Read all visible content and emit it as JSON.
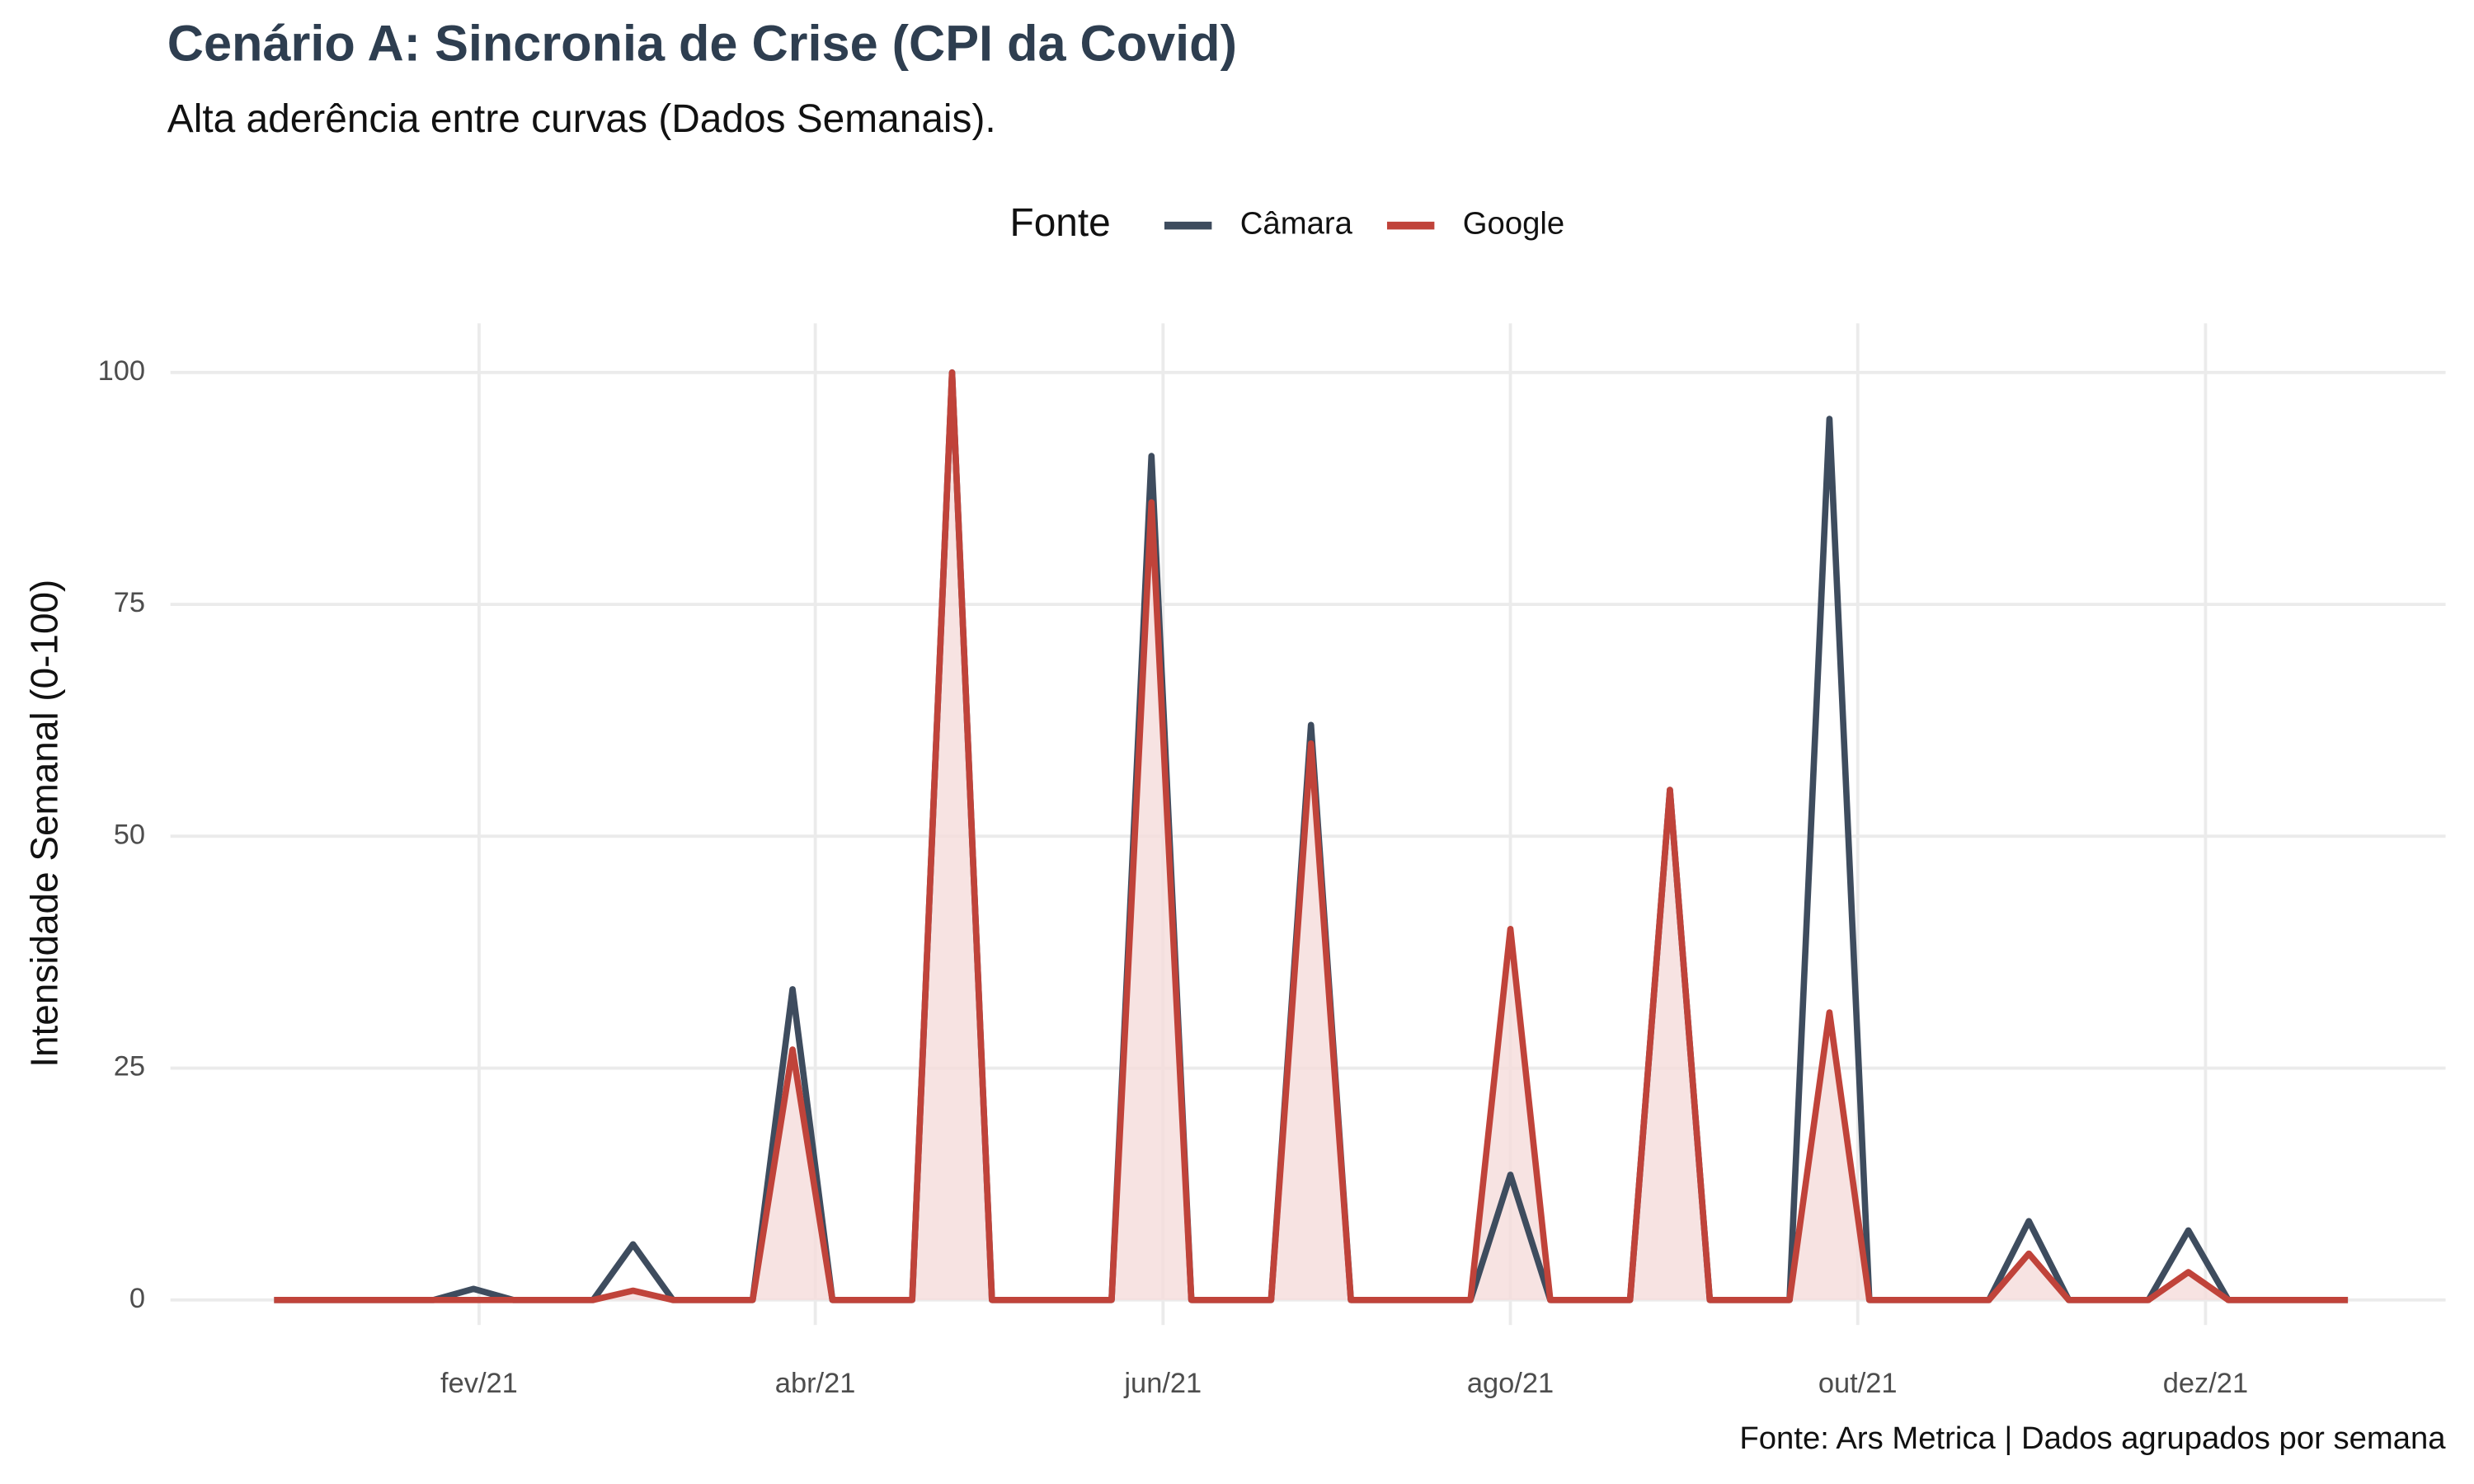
{
  "chart_data": {
    "type": "line",
    "title": "Cenário A: Sincronia de Crise (CPI da Covid)",
    "subtitle": "Alta aderência entre curvas (Dados Semanais).",
    "y_label": "Intensidade Semanal (0-100)",
    "caption": "Fonte: Ars Metrica | Dados agrupados por semana",
    "legend_title": "Fonte",
    "legend": "top",
    "grid": true,
    "categories": [
      null,
      null,
      null,
      null,
      null,
      null,
      null,
      null,
      null,
      null,
      null,
      null,
      null,
      null,
      null,
      null,
      null,
      null,
      null,
      null,
      null,
      null,
      null,
      null,
      null,
      null,
      null,
      null,
      null,
      null,
      null,
      null,
      null,
      null,
      null,
      null,
      null,
      null,
      null,
      null,
      null,
      null,
      null,
      null,
      null,
      null,
      null,
      null,
      null,
      null,
      null,
      null,
      null
    ],
    "xlim": [
      -2.6,
      54.45
    ],
    "xticks": [
      {
        "value": 5.14,
        "label": "fev/21"
      },
      {
        "value": 13.57,
        "label": "abr/21"
      },
      {
        "value": 22.29,
        "label": "jun/21"
      },
      {
        "value": 31.0,
        "label": "ago/21"
      },
      {
        "value": 39.71,
        "label": "out/21"
      },
      {
        "value": 48.43,
        "label": "dez/21"
      }
    ],
    "ylim": [
      -2.7,
      105.3
    ],
    "yticks": [
      0,
      25,
      50,
      75,
      100
    ],
    "series": [
      {
        "name": "Câmara",
        "color": "#3e4c5e",
        "values": [
          0,
          0,
          0,
          0,
          0,
          1.2,
          0,
          0,
          0,
          6,
          0,
          0,
          0,
          33.5,
          0,
          0,
          0,
          100,
          0,
          0,
          0,
          0,
          91,
          0,
          0,
          0,
          62,
          0,
          0,
          0,
          0,
          13.5,
          0,
          0,
          0,
          55,
          0,
          0,
          0,
          95,
          0,
          0,
          0,
          0,
          8.5,
          0,
          0,
          0,
          7.5,
          0,
          0,
          0,
          0
        ]
      },
      {
        "name": "Google",
        "color": "#c0433a",
        "fill": "#f5dcdb",
        "values": [
          0,
          0,
          0,
          0,
          0,
          0,
          0,
          0,
          0,
          1,
          0,
          0,
          0,
          27,
          0,
          0,
          0,
          100,
          0,
          0,
          0,
          0,
          86,
          0,
          0,
          0,
          60,
          0,
          0,
          0,
          0,
          40,
          0,
          0,
          0,
          55,
          0,
          0,
          0,
          31,
          0,
          0,
          0,
          0,
          5,
          0,
          0,
          0,
          3,
          0,
          0,
          0,
          0
        ]
      }
    ]
  }
}
